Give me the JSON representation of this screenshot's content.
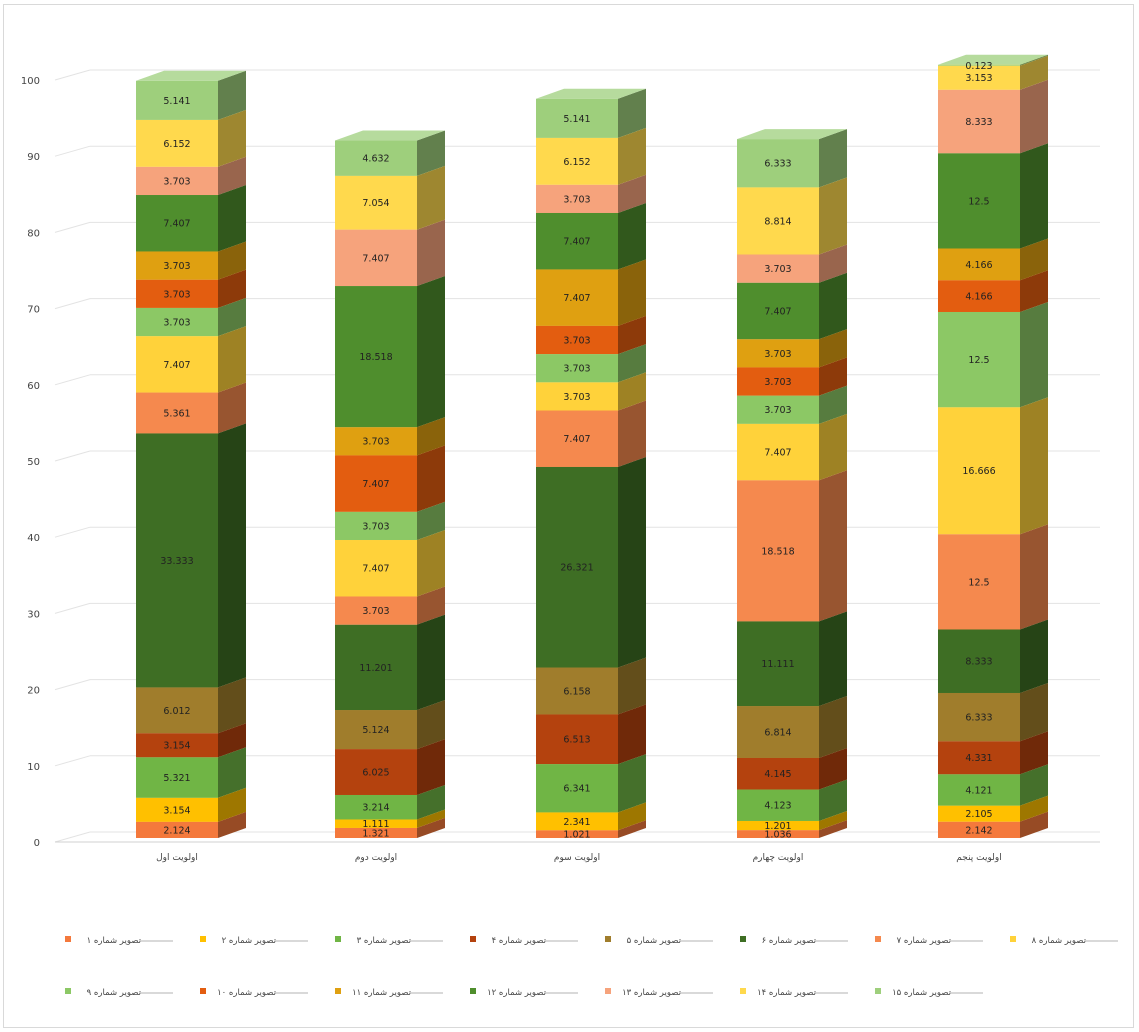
{
  "chart_data": {
    "type": "bar",
    "stacked": true,
    "three_d": true,
    "categories": [
      "اولویت اول",
      "اولویت دوم",
      "اولویت سوم",
      "اولویت چهارم",
      "اولویت پنجم"
    ],
    "ylim": [
      0,
      100
    ],
    "yticks": [
      0,
      10,
      20,
      30,
      40,
      50,
      60,
      70,
      80,
      90,
      100
    ],
    "grid": true,
    "legend_position": "bottom",
    "series": [
      {
        "name": "تصویر شماره ۱",
        "color": "#f4793c",
        "values": [
          2.124,
          1.321,
          1.021,
          1.036,
          2.142
        ]
      },
      {
        "name": "تصویر شماره ۲",
        "color": "#ffc000",
        "values": [
          3.154,
          1.111,
          2.341,
          1.201,
          2.105
        ]
      },
      {
        "name": "تصویر شماره ۳",
        "color": "#70b545",
        "values": [
          5.321,
          3.214,
          6.341,
          4.123,
          4.121
        ]
      },
      {
        "name": "تصویر شماره ۴",
        "color": "#b4420e",
        "values": [
          3.154,
          6.025,
          6.513,
          4.145,
          4.331
        ]
      },
      {
        "name": "تصویر شماره ۵",
        "color": "#a07d2c",
        "values": [
          6.012,
          5.124,
          6.158,
          6.814,
          6.333
        ]
      },
      {
        "name": "تصویر شماره ۶",
        "color": "#3e6e24",
        "values": [
          33.333,
          11.201,
          26.321,
          11.111,
          8.333
        ]
      },
      {
        "name": "تصویر شماره ۷",
        "color": "#f5894e",
        "values": [
          5.361,
          3.703,
          7.407,
          18.518,
          12.5
        ]
      },
      {
        "name": "تصویر شماره ۸",
        "color": "#ffd23a",
        "values": [
          7.407,
          7.407,
          3.703,
          7.407,
          16.666
        ]
      },
      {
        "name": "تصویر شماره ۹",
        "color": "#8cc865",
        "values": [
          3.703,
          3.703,
          3.703,
          3.703,
          12.5
        ]
      },
      {
        "name": "تصویر شماره ۱۰",
        "color": "#e35d10",
        "values": [
          3.703,
          7.407,
          3.703,
          3.703,
          4.166
        ]
      },
      {
        "name": "تصویر شماره ۱۱",
        "color": "#dfa011",
        "values": [
          3.703,
          3.703,
          7.407,
          3.703,
          4.166
        ]
      },
      {
        "name": "تصویر شماره ۱۲",
        "color": "#4f8e2d",
        "values": [
          7.407,
          18.518,
          7.407,
          7.407,
          12.5
        ]
      },
      {
        "name": "تصویر شماره ۱۳",
        "color": "#f6a37c",
        "values": [
          3.703,
          7.407,
          3.703,
          3.703,
          8.333
        ]
      },
      {
        "name": "تصویر شماره ۱۴",
        "color": "#ffd94d",
        "values": [
          6.152,
          7.054,
          6.152,
          8.814,
          3.153
        ]
      },
      {
        "name": "تصویر شماره ۱۵",
        "color": "#9ecf7c",
        "values": [
          5.141,
          4.632,
          5.141,
          6.333,
          0.123
        ]
      }
    ]
  }
}
